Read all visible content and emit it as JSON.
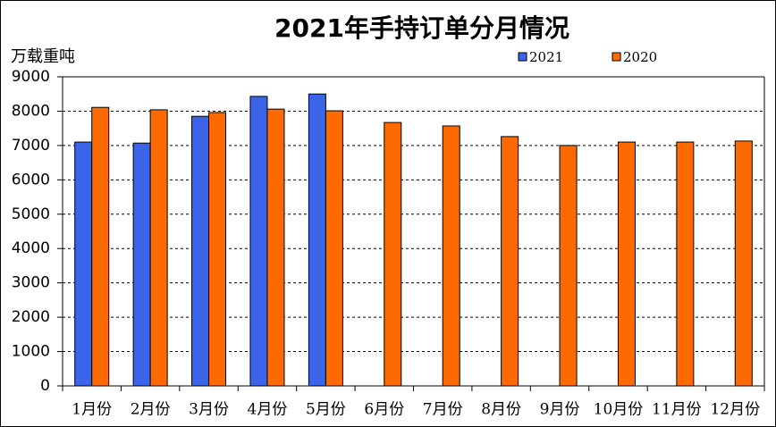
{
  "chart_data": {
    "type": "bar",
    "title": "2021年手持订单分月情况",
    "y_label": "万载重吨",
    "categories": [
      "1月份",
      "2月份",
      "3月份",
      "4月份",
      "5月份",
      "6月份",
      "7月份",
      "8月份",
      "9月份",
      "10月份",
      "11月份",
      "12月份"
    ],
    "series": [
      {
        "name": "2021",
        "color": "#3b64e8",
        "values": [
          7100,
          7070,
          7850,
          8430,
          8500,
          null,
          null,
          null,
          null,
          null,
          null,
          null
        ]
      },
      {
        "name": "2020",
        "color": "#ff6a00",
        "values": [
          8110,
          8040,
          7960,
          8060,
          8010,
          7670,
          7570,
          7260,
          7000,
          7100,
          7100,
          7130
        ]
      }
    ],
    "ylim": [
      0,
      9000
    ],
    "yticks": [
      0,
      1000,
      2000,
      3000,
      4000,
      5000,
      6000,
      7000,
      8000,
      9000
    ],
    "grid": true
  }
}
